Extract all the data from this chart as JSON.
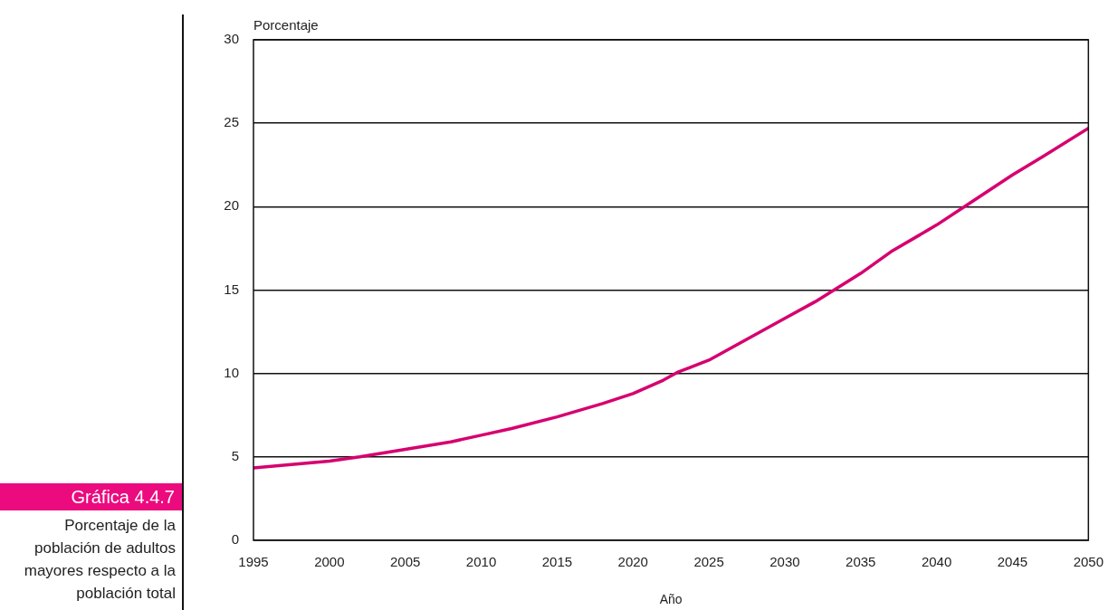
{
  "chart_data": {
    "type": "line",
    "title": "Gráfica 4.4.7",
    "subtitle": "Porcentaje de la población de adultos mayores respecto a la población total",
    "xlabel": "Año",
    "ylabel": "Porcentaje",
    "x": [
      1995,
      1997,
      2000,
      2002,
      2005,
      2008,
      2010,
      2012,
      2015,
      2018,
      2020,
      2022,
      2023,
      2025,
      2027,
      2030,
      2032,
      2035,
      2037,
      2040,
      2042,
      2045,
      2047,
      2050
    ],
    "series": [
      {
        "color": "#d6006f",
        "values": [
          4.34,
          4.5,
          4.75,
          5.0,
          5.45,
          5.9,
          6.3,
          6.7,
          7.4,
          8.2,
          8.8,
          9.6,
          10.1,
          10.8,
          11.8,
          13.3,
          14.3,
          16.0,
          17.3,
          18.9,
          20.1,
          21.9,
          23.0,
          24.7
        ]
      }
    ],
    "xlim": [
      1995,
      2050
    ],
    "xticks": [
      1995,
      2000,
      2005,
      2010,
      2015,
      2020,
      2025,
      2030,
      2035,
      2040,
      2045,
      2050
    ],
    "ylim": [
      0,
      30
    ],
    "yticks": [
      0,
      5,
      10,
      15,
      20,
      25,
      30
    ],
    "grid": "y",
    "legend": false,
    "marker": "none",
    "line_style": "solid"
  }
}
